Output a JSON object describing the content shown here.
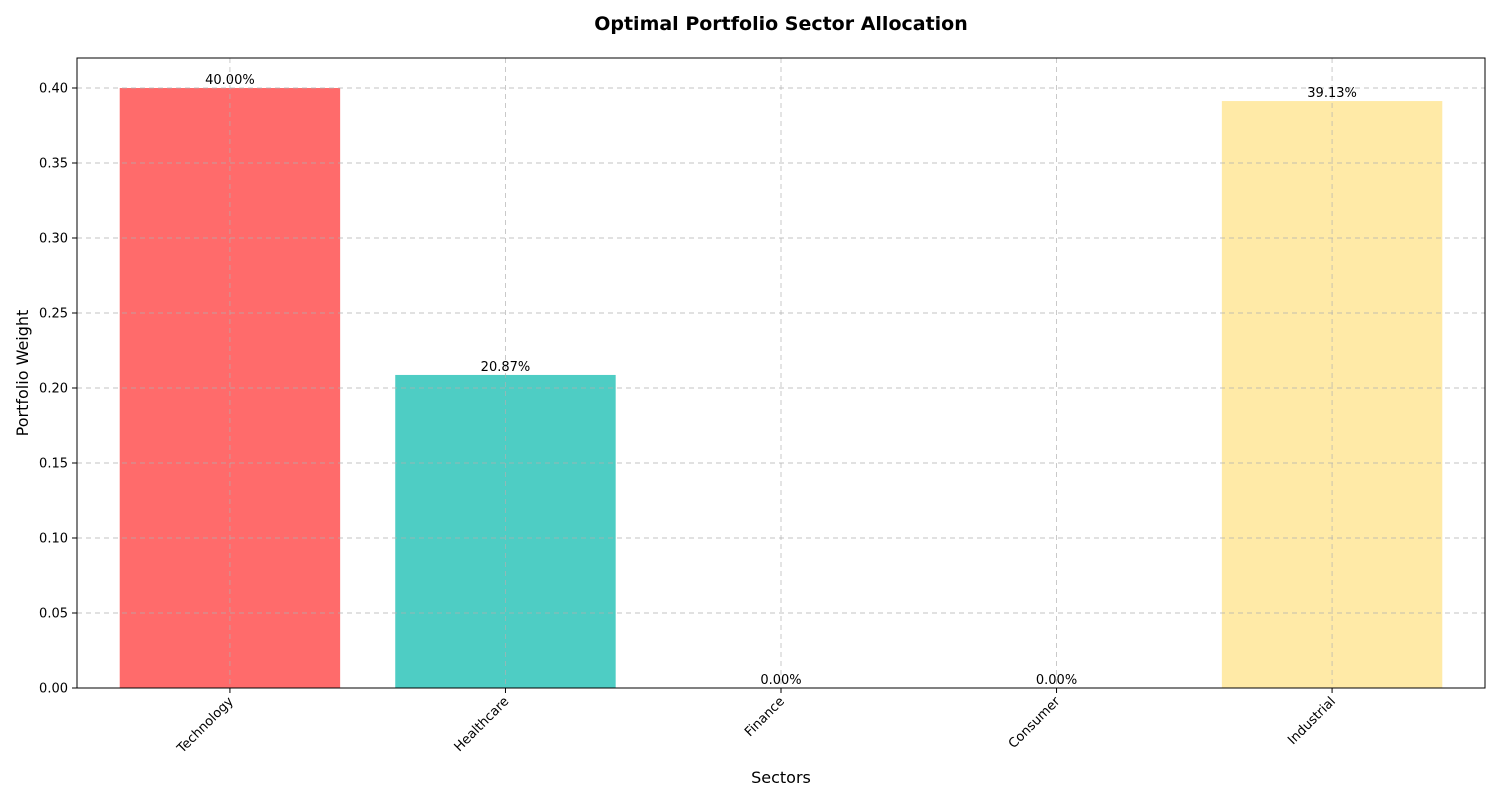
{
  "chart_data": {
    "type": "bar",
    "title": "Optimal Portfolio Sector Allocation",
    "xlabel": "Sectors",
    "ylabel": "Portfolio Weight",
    "categories": [
      "Technology",
      "Healthcare",
      "Finance",
      "Consumer",
      "Industrial"
    ],
    "values": [
      0.4,
      0.2087,
      0.0,
      0.0,
      0.3913
    ],
    "data_labels": [
      "40.00%",
      "20.87%",
      "0.00%",
      "0.00%",
      "39.13%"
    ],
    "colors": [
      "#ff6b6b",
      "#4ecdc4",
      "#45b7d1",
      "#96ceb4",
      "#ffeaa7"
    ],
    "ylim": [
      0,
      0.42
    ],
    "yticks": [
      0.0,
      0.05,
      0.1,
      0.15,
      0.2,
      0.25,
      0.3,
      0.35,
      0.4
    ],
    "ytick_labels": [
      "0.00",
      "0.05",
      "0.10",
      "0.15",
      "0.20",
      "0.25",
      "0.30",
      "0.35",
      "0.40"
    ],
    "grid": true,
    "xtick_rotation": 45
  }
}
